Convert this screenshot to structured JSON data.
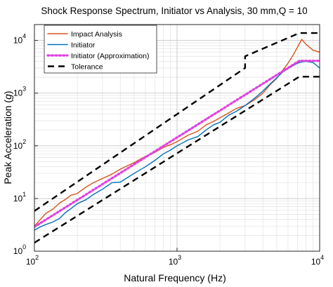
{
  "chart_data": {
    "type": "line",
    "title": "Shock Response Spectrum, Initiator vs Analysis, 30 mm,Q = 10",
    "xlabel": "Natural Frequency (Hz)",
    "ylabel": "Peak Acceleration",
    "ylabel_var": "g",
    "x_scale": "log",
    "y_scale": "log",
    "xlim": [
      100,
      10000
    ],
    "ylim": [
      1,
      20000
    ],
    "grid": true,
    "minor_grid": true,
    "legend_position": "top-left",
    "x_ticks": [
      {
        "base": "10",
        "exp": "2"
      },
      {
        "base": "10",
        "exp": "3"
      },
      {
        "base": "10",
        "exp": "4"
      }
    ],
    "y_ticks": [
      {
        "base": "10",
        "exp": "0"
      },
      {
        "base": "10",
        "exp": "1"
      },
      {
        "base": "10",
        "exp": "2"
      },
      {
        "base": "10",
        "exp": "3"
      },
      {
        "base": "10",
        "exp": "4"
      }
    ],
    "series": [
      {
        "name": "Impact Analysis",
        "color": "#d95319",
        "style": "solid",
        "x": [
          100,
          110,
          120,
          135,
          150,
          165,
          180,
          200,
          230,
          260,
          300,
          350,
          400,
          450,
          500,
          600,
          700,
          800,
          900,
          1000,
          1200,
          1400,
          1600,
          1800,
          2000,
          2300,
          2600,
          3000,
          3500,
          4000,
          4500,
          5000,
          5500,
          6000,
          6500,
          7000,
          7500,
          8000,
          9000,
          10000
        ],
        "y": [
          3.0,
          4.0,
          5.2,
          6.3,
          8.2,
          9.6,
          11.5,
          12.5,
          16.5,
          20.0,
          24.0,
          29.0,
          36.0,
          42.0,
          48.0,
          63.0,
          75.0,
          93.0,
          105.0,
          120.0,
          160.0,
          190.0,
          250.0,
          290.0,
          340.0,
          420.0,
          510.0,
          580.0,
          750.0,
          1000.0,
          1450.0,
          1900.0,
          2700.0,
          3700.0,
          5200.0,
          7500.0,
          10500.0,
          8500.0,
          6500.0,
          6000.0
        ]
      },
      {
        "name": "Initiator",
        "color": "#0072bd",
        "style": "solid",
        "x": [
          100,
          110,
          120,
          135,
          150,
          165,
          180,
          200,
          230,
          260,
          300,
          350,
          400,
          450,
          500,
          600,
          700,
          800,
          900,
          1000,
          1200,
          1400,
          1600,
          1800,
          2000,
          2300,
          2600,
          3000,
          3500,
          4000,
          4500,
          5000,
          5500,
          6000,
          6500,
          7000,
          7500,
          8000,
          9000,
          10000
        ],
        "y": [
          2.5,
          2.9,
          3.2,
          3.6,
          4.2,
          5.4,
          6.4,
          8.0,
          9.5,
          12.0,
          15.0,
          20.0,
          20.5,
          25.0,
          30.0,
          40.0,
          53.0,
          70.0,
          83.0,
          100.0,
          130.0,
          150.0,
          200.0,
          250.0,
          280.0,
          380.0,
          450.0,
          580.0,
          800.0,
          1100.0,
          1500.0,
          1950.0,
          2500.0,
          2900.0,
          3300.0,
          3700.0,
          3900.0,
          4000.0,
          3800.0,
          3000.0
        ]
      },
      {
        "name": "Initiator (Approximation)",
        "color": "#e040e0",
        "style": "dotted",
        "x": [
          100,
          7200,
          10000
        ],
        "y": [
          2.9,
          4100.0,
          4100.0
        ]
      },
      {
        "name": "Tolerance",
        "color": "#000000",
        "style": "dashed",
        "segments": [
          {
            "x": [
              100,
              3000,
              3000,
              7200,
              10000
            ],
            "y": [
              5.8,
              3000.0,
              5000.0,
              13800.0,
              13800.0
            ]
          },
          {
            "x": [
              100,
              7200,
              10000
            ],
            "y": [
              1.45,
              2050.0,
              2050.0
            ]
          }
        ]
      }
    ]
  }
}
